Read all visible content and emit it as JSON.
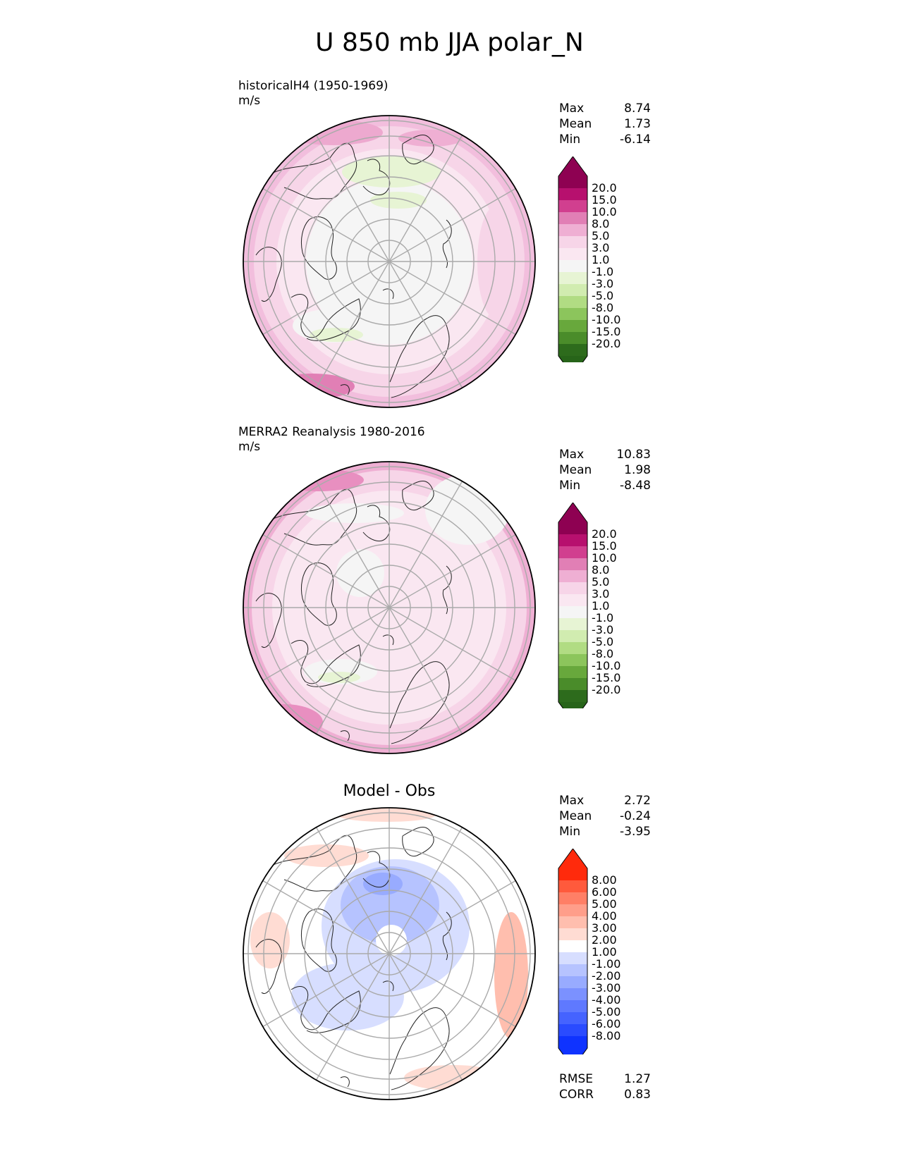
{
  "title": "U 850 mb JJA polar_N",
  "panels": [
    {
      "title_line1": "historicalH4 (1950-1969)",
      "title_line2": "m/s",
      "stats": [
        {
          "label": "Max",
          "value": "8.74"
        },
        {
          "label": "Mean",
          "value": "1.73"
        },
        {
          "label": "Min",
          "value": "-6.14"
        }
      ]
    },
    {
      "title_line1": "MERRA2 Reanalysis 1980-2016",
      "title_line2": "m/s",
      "stats": [
        {
          "label": "Max",
          "value": "10.83"
        },
        {
          "label": "Mean",
          "value": "1.98"
        },
        {
          "label": "Min",
          "value": "-8.48"
        }
      ]
    },
    {
      "title": "Model - Obs",
      "stats": [
        {
          "label": "Max",
          "value": "2.72"
        },
        {
          "label": "Mean",
          "value": "-0.24"
        },
        {
          "label": "Min",
          "value": "-3.95"
        }
      ],
      "extra_stats": [
        {
          "label": "RMSE",
          "value": "1.27"
        },
        {
          "label": "CORR",
          "value": "0.83"
        }
      ]
    }
  ],
  "colorbars": {
    "field": {
      "ticks": [
        "20.0",
        "15.0",
        "10.0",
        "8.0",
        "5.0",
        "3.0",
        "1.0",
        "-1.0",
        "-3.0",
        "-5.0",
        "-8.0",
        "-10.0",
        "-15.0",
        "-20.0"
      ],
      "colors": [
        "#8e0152",
        "#b7106e",
        "#d13f8f",
        "#e17fb5",
        "#efafd3",
        "#f7d5e8",
        "#fae7f1",
        "#f5f5f5",
        "#e7f4d4",
        "#d1ecb0",
        "#b1dc83",
        "#8cc55c",
        "#68a83c",
        "#4a8c2a",
        "#2d6b1c"
      ],
      "top_color": "#8e0152",
      "bottom_color": "#276419"
    },
    "diff": {
      "ticks": [
        "8.00",
        "6.00",
        "5.00",
        "4.00",
        "3.00",
        "2.00",
        "1.00",
        "-1.00",
        "-2.00",
        "-3.00",
        "-4.00",
        "-5.00",
        "-6.00",
        "-8.00"
      ],
      "colors": [
        "#ff2a0c",
        "#ff5a3c",
        "#ff7f66",
        "#ff9e8a",
        "#ffbeae",
        "#ffdcd3",
        "#ffffff",
        "#d7deff",
        "#b6c3ff",
        "#98abff",
        "#7b91ff",
        "#5f79ff",
        "#4563ff",
        "#2a4bff",
        "#0f33ff"
      ],
      "top_color": "#ff2a0c",
      "bottom_color": "#0f33ff"
    }
  },
  "chart_data": [
    {
      "type": "heatmap",
      "title": "historicalH4 (1950-1969)",
      "units": "m/s",
      "projection": "north polar stereographic",
      "stats": {
        "max": 8.74,
        "mean": 1.73,
        "min": -6.14
      },
      "levels": [
        -20,
        -15,
        -10,
        -8,
        -5,
        -3,
        -1,
        1,
        3,
        5,
        8,
        10,
        15,
        20
      ]
    },
    {
      "type": "heatmap",
      "title": "MERRA2 Reanalysis 1980-2016",
      "units": "m/s",
      "projection": "north polar stereographic",
      "stats": {
        "max": 10.83,
        "mean": 1.98,
        "min": -8.48
      },
      "levels": [
        -20,
        -15,
        -10,
        -8,
        -5,
        -3,
        -1,
        1,
        3,
        5,
        8,
        10,
        15,
        20
      ]
    },
    {
      "type": "heatmap",
      "title": "Model - Obs",
      "projection": "north polar stereographic",
      "stats": {
        "max": 2.72,
        "mean": -0.24,
        "min": -3.95,
        "rmse": 1.27,
        "corr": 0.83
      },
      "levels": [
        -8,
        -6,
        -5,
        -4,
        -3,
        -2,
        -1,
        1,
        2,
        3,
        4,
        5,
        6,
        8
      ]
    }
  ]
}
